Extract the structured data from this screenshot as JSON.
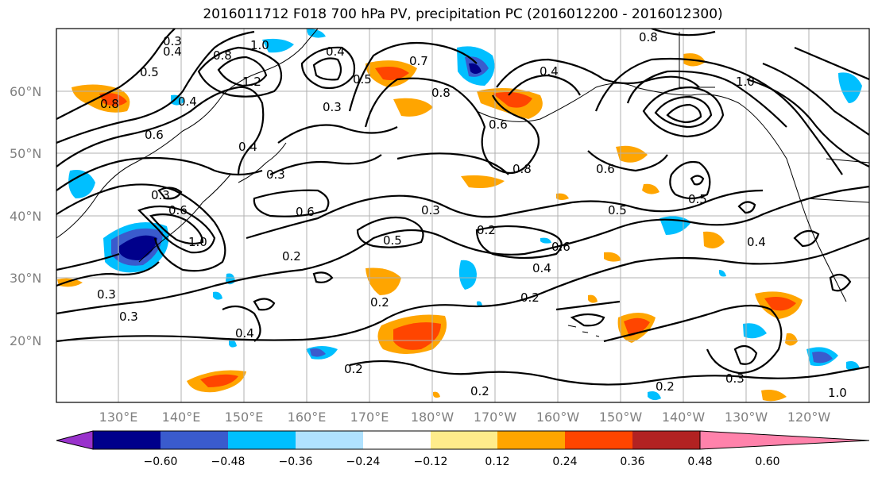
{
  "title": "2016011712 F018 700 hPa PV, precipitation PC (2016012200 - 2016012300)",
  "lon_ticks": [
    "130°E",
    "140°E",
    "150°E",
    "160°E",
    "170°E",
    "180°W",
    "170°W",
    "160°W",
    "150°W",
    "140°W",
    "130°W",
    "120°W"
  ],
  "lat_ticks": [
    "60°N",
    "50°N",
    "40°N",
    "30°N",
    "20°N"
  ],
  "colorbar": {
    "labels": [
      "−0.60",
      "−0.48",
      "−0.36",
      "−0.24",
      "−0.12",
      "0.12",
      "0.24",
      "0.36",
      "0.48",
      "0.60"
    ],
    "colors": [
      "#9932cc",
      "#00008b",
      "#3a5bcd",
      "#00bfff",
      "#b0e2ff",
      "#ffffff",
      "#ffec8b",
      "#ffa500",
      "#ff4500",
      "#b22222",
      "#ff82ab"
    ]
  },
  "contour_labels": [
    {
      "text": "0.3"
    },
    {
      "text": "0.4"
    },
    {
      "text": "0.5"
    },
    {
      "text": "0.8"
    },
    {
      "text": "1.0"
    },
    {
      "text": "0.4"
    },
    {
      "text": "1.2"
    },
    {
      "text": "0.4"
    },
    {
      "text": "0.3"
    },
    {
      "text": "0.5"
    },
    {
      "text": "0.7"
    },
    {
      "text": "0.8"
    },
    {
      "text": "0.4"
    },
    {
      "text": "0.6"
    },
    {
      "text": "0.8"
    },
    {
      "text": "1.0"
    },
    {
      "text": "0.6"
    },
    {
      "text": "0.4"
    },
    {
      "text": "0.3"
    },
    {
      "text": "0.6"
    },
    {
      "text": "0.3"
    },
    {
      "text": "0.6"
    },
    {
      "text": "0.3"
    },
    {
      "text": "0.6"
    },
    {
      "text": "0.5"
    },
    {
      "text": "0.5"
    },
    {
      "text": "0.2"
    },
    {
      "text": "0.5"
    },
    {
      "text": "0.6"
    },
    {
      "text": "0.4"
    },
    {
      "text": "0.2"
    },
    {
      "text": "0.3"
    },
    {
      "text": "0.3"
    },
    {
      "text": "0.2"
    },
    {
      "text": "0.2"
    },
    {
      "text": "0.2"
    },
    {
      "text": "0.2"
    },
    {
      "text": "0.3"
    },
    {
      "text": "0.2"
    },
    {
      "text": "0.4"
    },
    {
      "text": "1.0"
    },
    {
      "text": "0.8"
    },
    {
      "text": "0.8"
    },
    {
      "text": "0.4"
    },
    {
      "text": "1.0"
    }
  ]
}
